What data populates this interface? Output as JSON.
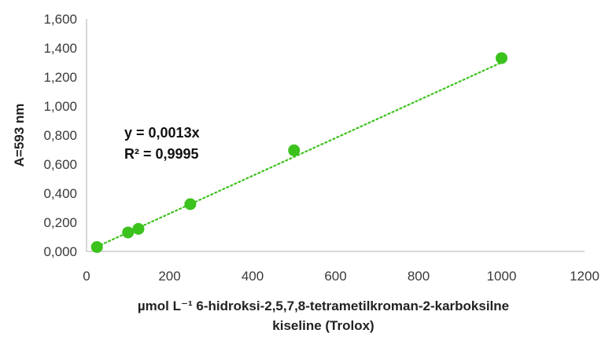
{
  "chart_data": {
    "type": "scatter",
    "x": [
      25,
      100,
      125,
      250,
      500,
      1000
    ],
    "y": [
      0.03,
      0.13,
      0.155,
      0.325,
      0.695,
      1.33
    ],
    "xlim": [
      0,
      1200
    ],
    "ylim": [
      0,
      1.6
    ],
    "x_ticks": [
      "0",
      "200",
      "400",
      "600",
      "800",
      "1000",
      "1200"
    ],
    "y_ticks": [
      "0,000",
      "0,200",
      "0,400",
      "0,600",
      "0,800",
      "1,000",
      "1,200",
      "1,400",
      "1,600"
    ],
    "ylabel": "A=593 nm",
    "xlabel_line1": "µmol L⁻¹ 6-hidroksi-2,5,7,8-tetrametilkroman-2-karboksilne",
    "xlabel_line2": "kiseline (Trolox)",
    "trendline": {
      "slope": 0.0013,
      "intercept": 0,
      "style": "dotted"
    },
    "equation": "y = 0,0013x",
    "r_squared": "R² = 0,9995",
    "grid": false,
    "colors": {
      "marker": "#3cc21c",
      "trendline": "#3cc21c",
      "axis": "#bfbfbf"
    }
  }
}
